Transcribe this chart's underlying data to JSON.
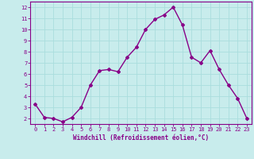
{
  "x": [
    0,
    1,
    2,
    3,
    4,
    5,
    6,
    7,
    8,
    9,
    10,
    11,
    12,
    13,
    14,
    15,
    16,
    17,
    18,
    19,
    20,
    21,
    22,
    23
  ],
  "y": [
    3.3,
    2.1,
    2.0,
    1.7,
    2.1,
    3.0,
    5.0,
    6.3,
    6.4,
    6.2,
    7.5,
    8.4,
    10.0,
    10.9,
    11.3,
    12.0,
    10.4,
    7.5,
    7.0,
    8.1,
    6.4,
    5.0,
    3.8,
    2.0
  ],
  "line_color": "#880088",
  "marker": "D",
  "marker_size": 2.0,
  "linewidth": 1.0,
  "xlabel": "Windchill (Refroidissement éolien,°C)",
  "ylabel_ticks": [
    2,
    3,
    4,
    5,
    6,
    7,
    8,
    9,
    10,
    11,
    12
  ],
  "xlim": [
    -0.5,
    23.5
  ],
  "ylim": [
    1.5,
    12.5
  ],
  "background_color": "#c8ecec",
  "grid_color": "#aadddd",
  "tick_color": "#880088",
  "label_color": "#880088",
  "font_family": "monospace",
  "tick_fontsize": 5.0,
  "xlabel_fontsize": 5.5
}
